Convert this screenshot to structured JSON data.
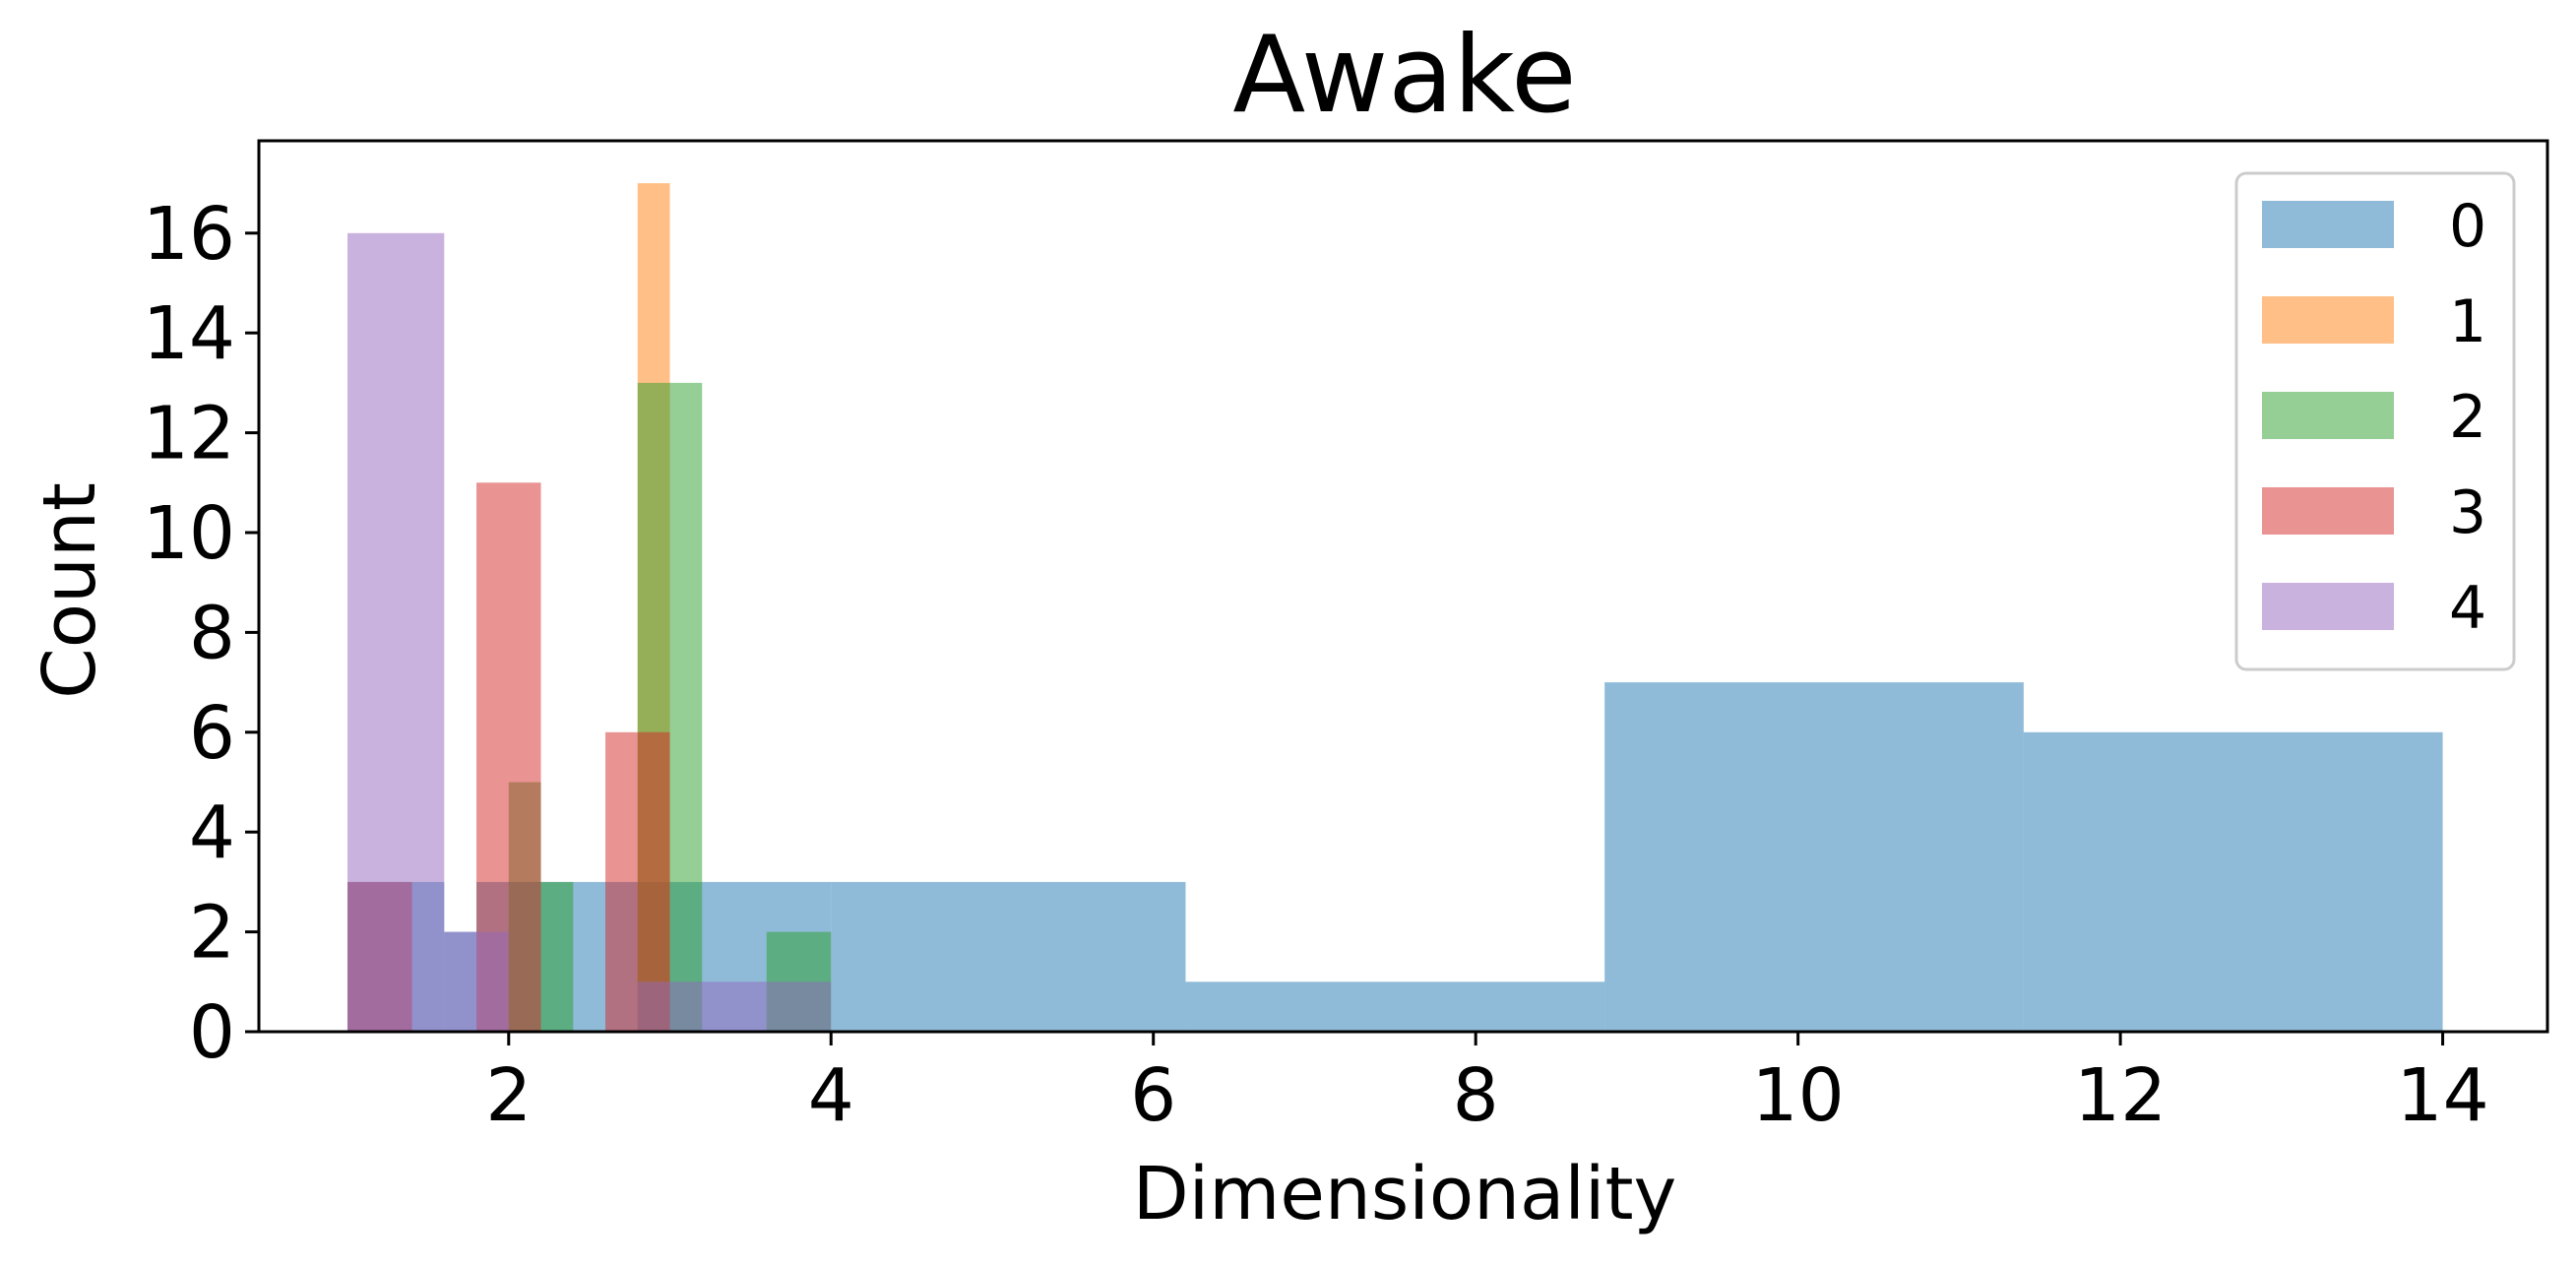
{
  "chart_data": {
    "type": "bar",
    "title": "Awake",
    "xlabel": "Dimensionality",
    "ylabel": "Count",
    "xlim": [
      0.45,
      14.65
    ],
    "ylim": [
      0,
      17.85
    ],
    "xticks": [
      2,
      4,
      6,
      8,
      10,
      12,
      14
    ],
    "yticks": [
      0,
      2,
      4,
      6,
      8,
      10,
      12,
      14,
      16
    ],
    "grid": false,
    "legend_position": "top-right",
    "histogram": true,
    "series": [
      {
        "name": "0",
        "color": "#1f77b4",
        "bin_edges": [
          1.0,
          1.6,
          1.8,
          4.0,
          6.2,
          8.8,
          11.4,
          14.0
        ],
        "counts": [
          3,
          2,
          3,
          3,
          1,
          7,
          6
        ]
      },
      {
        "name": "1",
        "color": "#ff7f0e",
        "bin_edges": [
          2.8,
          3.0
        ],
        "counts": [
          17
        ]
      },
      {
        "name": "2",
        "color": "#2ca02c",
        "bin_edges": [
          2.0,
          2.2,
          2.4,
          2.8,
          3.2,
          3.6,
          4.0
        ],
        "counts": [
          5,
          3,
          0,
          13,
          0,
          2
        ]
      },
      {
        "name": "3",
        "color": "#d62728",
        "bin_edges": [
          1.0,
          1.4,
          1.8,
          2.2,
          2.6,
          3.0
        ],
        "counts": [
          3,
          0,
          11,
          0,
          6
        ]
      },
      {
        "name": "4",
        "color": "#9467bd",
        "bin_edges": [
          1.0,
          1.6,
          2.0,
          2.8,
          3.0,
          3.6,
          4.0
        ],
        "counts": [
          16,
          2,
          0,
          1,
          1,
          1
        ]
      }
    ]
  }
}
